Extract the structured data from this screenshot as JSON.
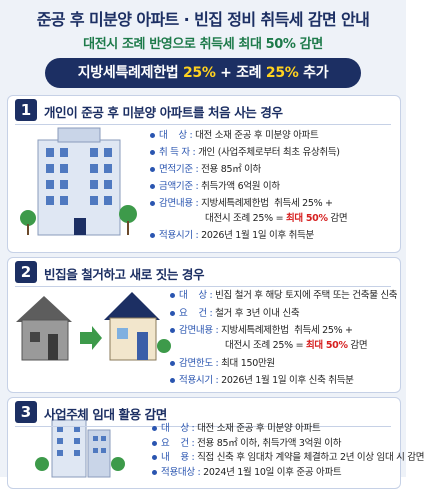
{
  "header": {
    "title": "준공 후 미분양 아파트 · 빈집 정비 취득세 감면 안내",
    "subtitle": "대전시 조례 반영으로 취득세 최대 50% 감면"
  },
  "banner": {
    "law": "지방세특례제한법",
    "law_rate": "25%",
    "plus": "+",
    "ordinance": "조례",
    "ordinance_rate": "25%",
    "suffix": "추가"
  },
  "sections": [
    {
      "number": "1",
      "title": "개인이 준공 후 미분양 아파트를 처음 사는 경우",
      "items": [
        {
          "label": "대    상",
          "lines": [
            {
              "text": "대전 소재 준공 후 미분양 아파트"
            }
          ]
        },
        {
          "label": "취 득 자",
          "lines": [
            {
              "text": "개인 (사업주체로부터 최초 유상취득)"
            }
          ]
        },
        {
          "label": "면적기준",
          "lines": [
            {
              "text": "전용 85㎡ 이하"
            }
          ]
        },
        {
          "label": "금액기준",
          "lines": [
            {
              "text": "취득가액 6억원 이하"
            }
          ]
        },
        {
          "label": "감면내용",
          "lines": [
            {
              "text": "지방세특례제한법  취득세 25% +"
            },
            {
              "text": "대전시 조례 25% = ",
              "em": "최대 50%",
              "after": " 감면"
            }
          ]
        },
        {
          "label": "적용시기",
          "lines": [
            {
              "text": "2026년 1월 1일 이후 취득분"
            }
          ]
        }
      ]
    },
    {
      "number": "2",
      "title": "빈집을 철거하고 새로 짓는 경우",
      "items": [
        {
          "label": "대    상",
          "lines": [
            {
              "text": "빈집 철거 후 해당 토지에 주택 또는 건축물 신축"
            }
          ]
        },
        {
          "label": "요    건",
          "lines": [
            {
              "text": "철거 후 3년 이내 신축"
            }
          ]
        },
        {
          "label": "감면내용",
          "lines": [
            {
              "text": "지방세특례제한법  취득세 25% +"
            },
            {
              "text": "대전시 조례 25% = ",
              "em": "최대 50%",
              "after": " 감면"
            }
          ]
        },
        {
          "label": "감면한도",
          "lines": [
            {
              "text": "최대 150만원"
            }
          ]
        },
        {
          "label": "적용시기",
          "lines": [
            {
              "text": "2026년 1월 1일 이후 신축 취득분"
            }
          ]
        }
      ]
    },
    {
      "number": "3",
      "title": "사업주체 임대 활용 감면",
      "items": [
        {
          "label": "대    상",
          "lines": [
            {
              "text": "대전 소재 준공 후 미분양 아파트"
            }
          ]
        },
        {
          "label": "요    건",
          "lines": [
            {
              "text": "전용 85㎡ 이하, 취득가액 3억원 이하"
            }
          ]
        },
        {
          "label": "내    용",
          "lines": [
            {
              "text": "직접 신축 후 임대차 계약을 체결하고 2년 이상 임대 시 감면"
            }
          ]
        },
        {
          "label": "적용대상",
          "lines": [
            {
              "text": "2024년 1월 10일 이후 준공 아파트"
            }
          ]
        }
      ]
    }
  ]
}
